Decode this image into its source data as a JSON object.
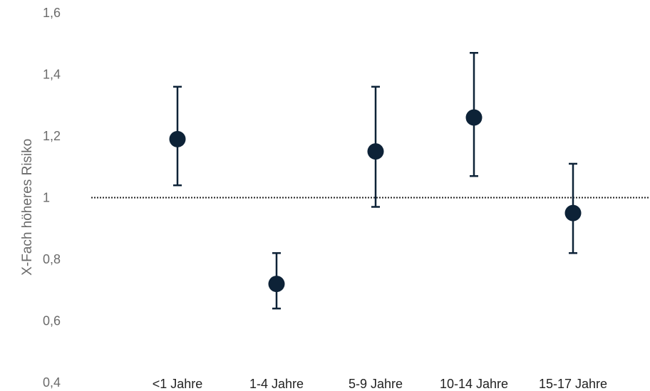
{
  "chart_data": {
    "type": "scatter",
    "title": "",
    "xlabel": "",
    "ylabel": "X-Fach höheres Risiko",
    "ylim": [
      0.4,
      1.6
    ],
    "yticks": [
      "0,4",
      "0,6",
      "0,8",
      "1",
      "1,2",
      "1,4",
      "1,6"
    ],
    "ytick_values": [
      0.4,
      0.6,
      0.8,
      1.0,
      1.2,
      1.4,
      1.6
    ],
    "categories": [
      "<1 Jahre",
      "1-4 Jahre",
      "5-9 Jahre",
      "10-14 Jahre",
      "15-17 Jahre"
    ],
    "series": [
      {
        "values": [
          1.19,
          0.72,
          1.15,
          1.26,
          0.95
        ],
        "lower": [
          1.04,
          0.64,
          0.97,
          1.07,
          0.82
        ],
        "upper": [
          1.36,
          0.82,
          1.36,
          1.47,
          1.11
        ]
      }
    ],
    "reference_line": {
      "y": 1.0,
      "style": "dotted"
    },
    "grid": false,
    "legend": "none",
    "colors": {
      "marker": "#0d2237",
      "reference": "#222222",
      "tick": "#6b6b6b"
    }
  }
}
